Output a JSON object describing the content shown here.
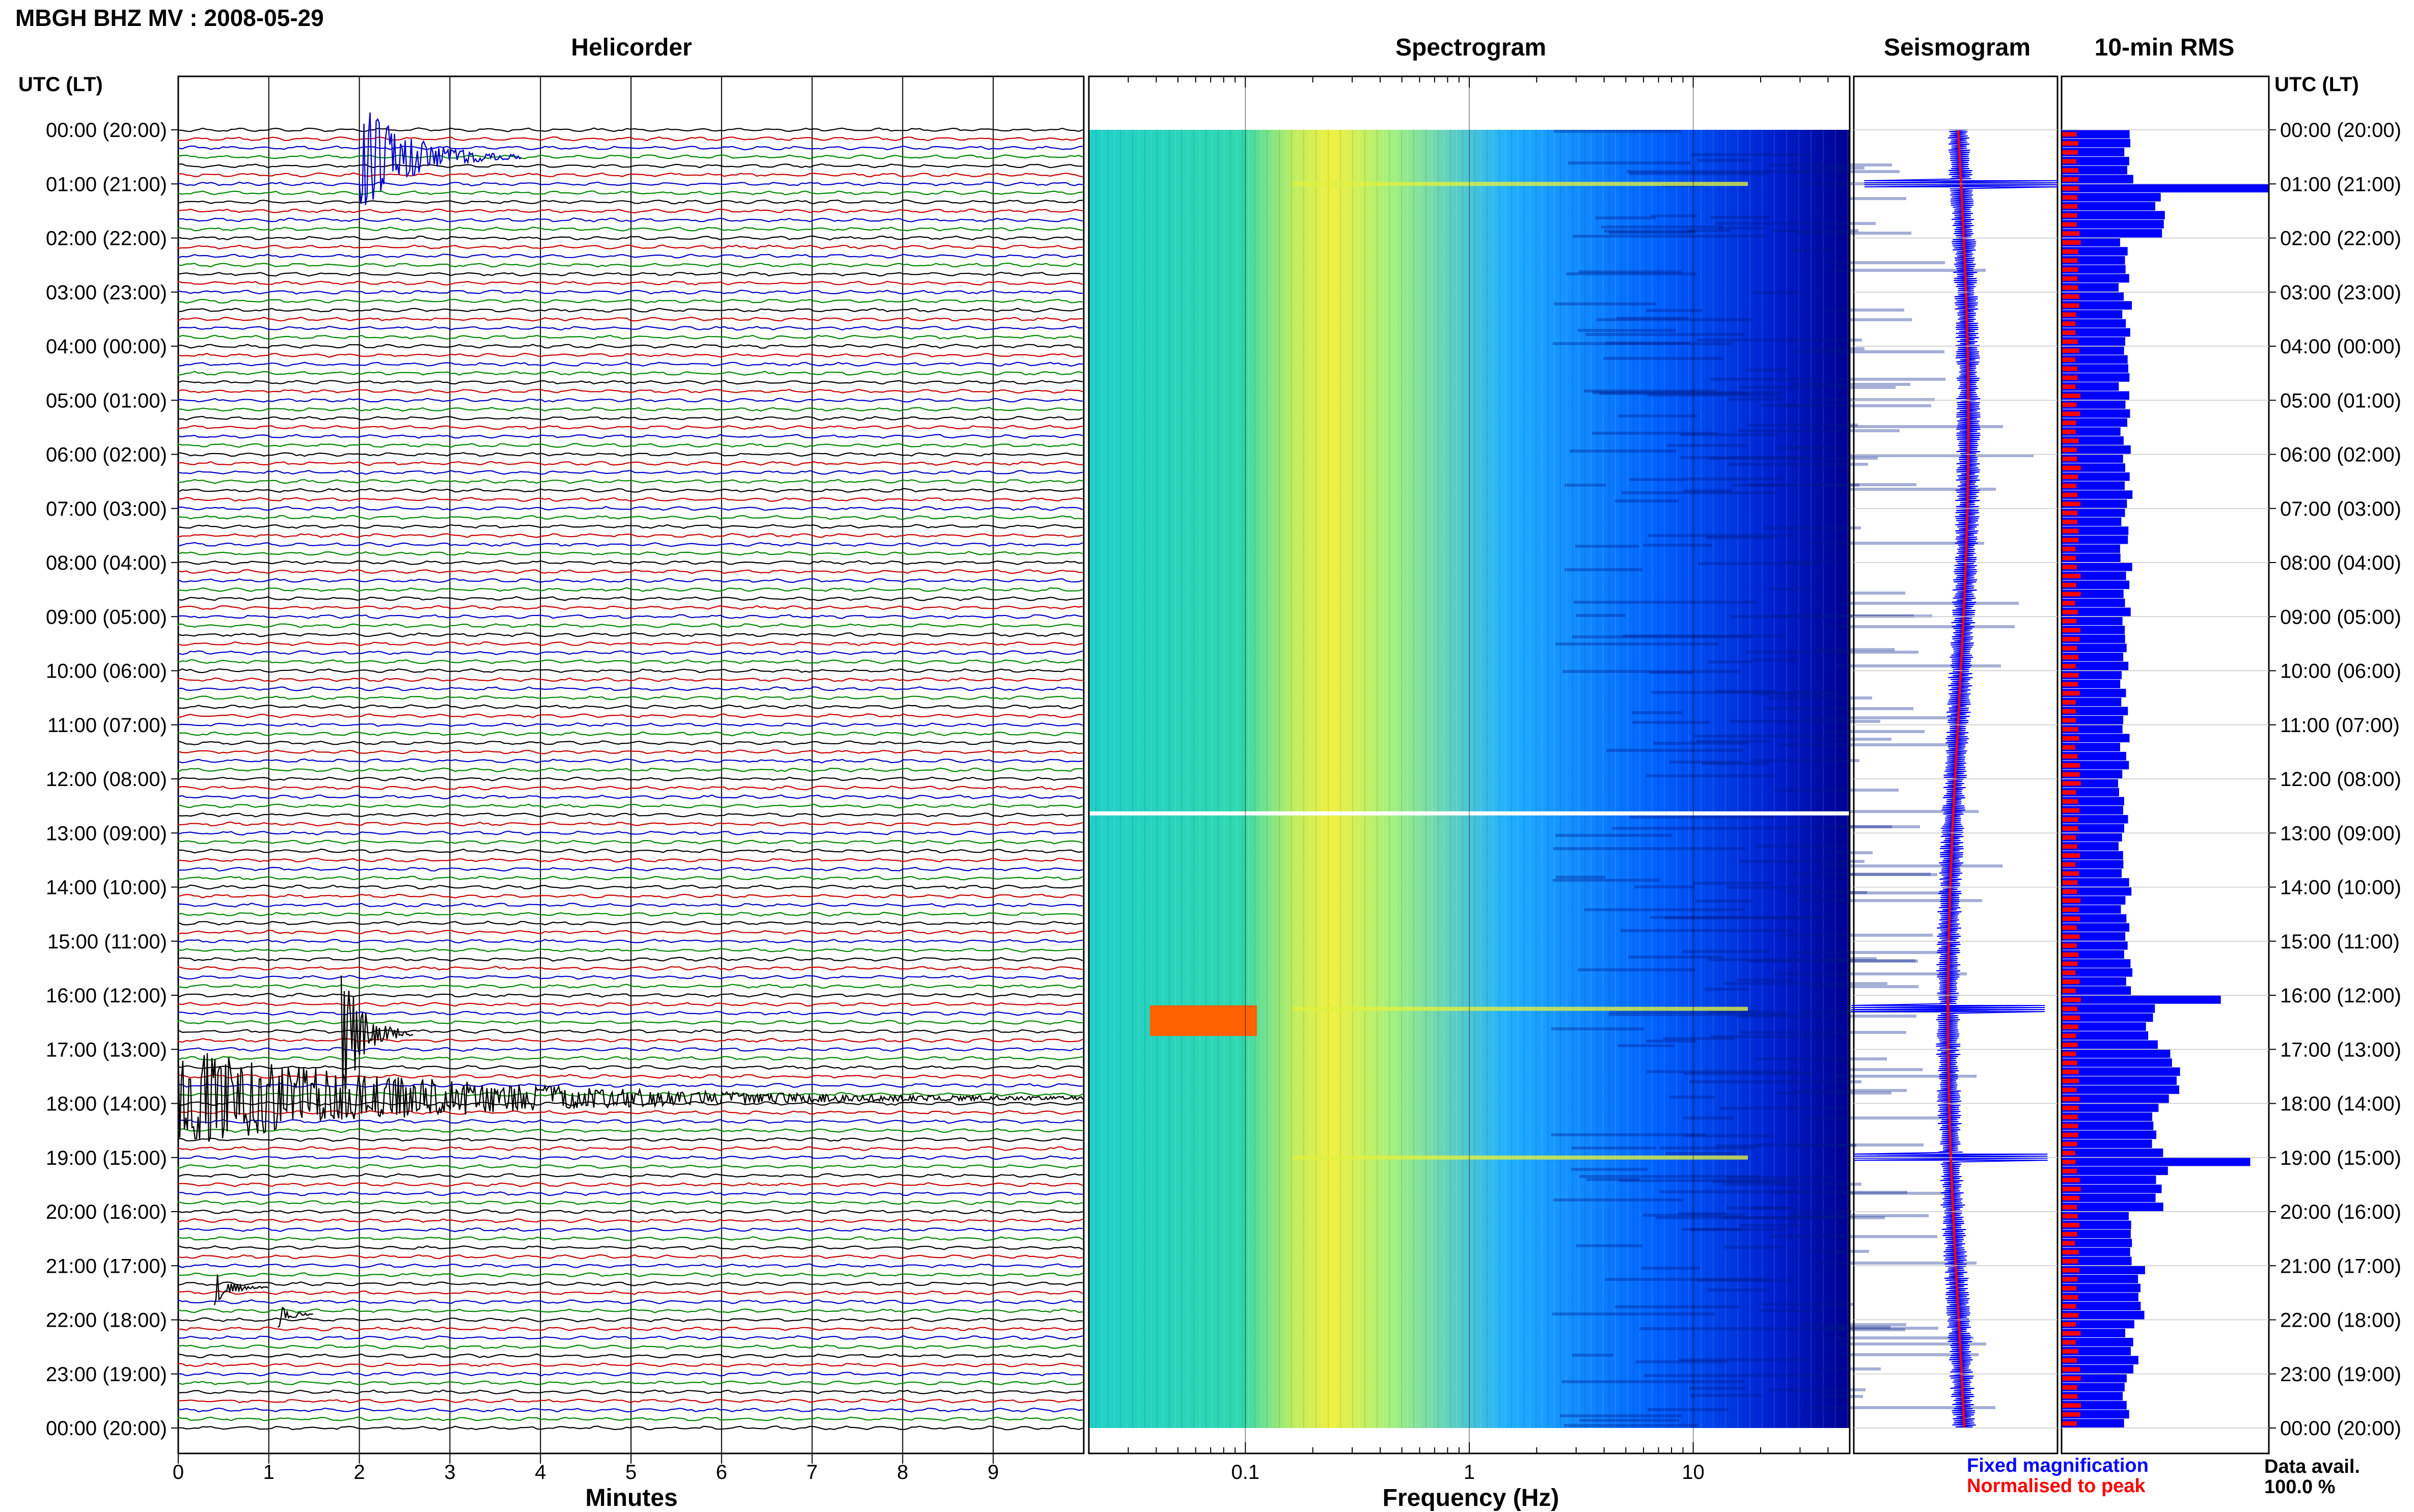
{
  "page": {
    "title": "MBGH BHZ MV : 2008-05-29",
    "tz_header_left": "UTC (LT)",
    "tz_header_right": "UTC (LT)",
    "data_avail_label": "Data avail.",
    "data_avail_value": "100.0 %"
  },
  "chart_data": [
    {
      "type": "line",
      "panel": "helicorder",
      "title": "Helicorder",
      "xlabel": "Minutes",
      "xlim": [
        0,
        10
      ],
      "xticks": [
        0,
        1,
        2,
        3,
        4,
        5,
        6,
        7,
        8,
        9
      ],
      "ylabel": "",
      "hour_labels": [
        "00:00 (20:00)",
        "01:00 (21:00)",
        "02:00 (22:00)",
        "03:00 (23:00)",
        "04:00 (00:00)",
        "05:00 (01:00)",
        "06:00 (02:00)",
        "07:00 (03:00)",
        "08:00 (04:00)",
        "09:00 (05:00)",
        "10:00 (06:00)",
        "11:00 (07:00)",
        "12:00 (08:00)",
        "13:00 (09:00)",
        "14:00 (10:00)",
        "15:00 (11:00)",
        "16:00 (12:00)",
        "17:00 (13:00)",
        "18:00 (14:00)",
        "19:00 (15:00)",
        "20:00 (16:00)",
        "21:00 (17:00)",
        "22:00 (18:00)",
        "23:00 (19:00)",
        "00:00 (20:00)"
      ],
      "trace_colors": [
        "#000000",
        "#cc0000",
        "#0000cc",
        "#008800"
      ],
      "lines_per_hour": 6,
      "events": [
        {
          "hour": 0.5,
          "minute_start": 2.0,
          "minute_end": 3.8,
          "amplitude": 5,
          "color": "#0000cc"
        },
        {
          "hour": 16.7,
          "minute_start": 1.8,
          "minute_end": 2.6,
          "amplitude": 6,
          "color": "#000000"
        },
        {
          "hour": 17.9,
          "minute_start": 0.0,
          "minute_end": 10.0,
          "amplitude": 4,
          "color": "#000000"
        },
        {
          "hour": 21.4,
          "minute_start": 0.4,
          "minute_end": 1.0,
          "amplitude": 1.5,
          "color": "#000000"
        },
        {
          "hour": 21.9,
          "minute_start": 1.1,
          "minute_end": 1.5,
          "amplitude": 1.2,
          "color": "#000000"
        }
      ]
    },
    {
      "type": "heatmap",
      "panel": "spectrogram",
      "title": "Spectrogram",
      "xlabel": "Frequency (Hz)",
      "xscale": "log",
      "xlim": [
        0.02,
        50
      ],
      "xtick_labels": [
        "0.1",
        "1",
        "10"
      ],
      "ylim_hours": [
        0,
        24
      ],
      "colormap": [
        "#00007a",
        "#0030ff",
        "#00a0ff",
        "#20e0d0",
        "#a0f060",
        "#f0f000",
        "#ff8000",
        "#ff0000"
      ],
      "energy_peak_hz": 0.3,
      "bright_rows_hours": [
        1.0,
        16.25,
        19.0
      ]
    },
    {
      "type": "line",
      "panel": "seismogram",
      "title": "Seismogram",
      "legend": [
        {
          "label": "Fixed magnification",
          "color": "#0000ff"
        },
        {
          "label": "Normalised to peak",
          "color": "#ff0000"
        }
      ],
      "spikes_hours": [
        1.0,
        16.25,
        19.0
      ]
    },
    {
      "type": "bar",
      "panel": "rms",
      "title": "10-min RMS",
      "orientation": "horizontal",
      "bars_per_hour": 6,
      "series": [
        {
          "name": "Fixed magnification",
          "color": "#0000ff"
        },
        {
          "name": "Normalised to peak",
          "color": "#ff0000"
        }
      ],
      "hourly_relative_rms": [
        0.32,
        1.0,
        0.3,
        0.31,
        0.3,
        0.31,
        0.32,
        0.31,
        0.32,
        0.31,
        0.3,
        0.31,
        0.3,
        0.3,
        0.31,
        0.32,
        0.85,
        0.55,
        0.48,
        1.0,
        0.33,
        0.4,
        0.34,
        0.3
      ]
    }
  ]
}
